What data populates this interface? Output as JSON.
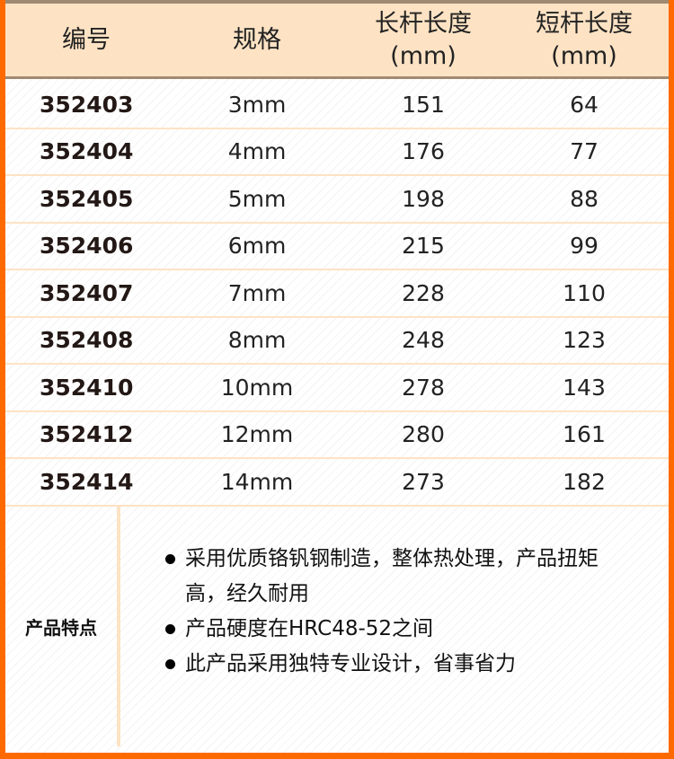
{
  "header": {
    "col1": "编号",
    "col2": "规格",
    "col3": "长杆长度\n(mm)",
    "col4": "短杆长度\n(mm)"
  },
  "rows": [
    [
      "352403",
      "3mm",
      "151",
      "64"
    ],
    [
      "352404",
      "4mm",
      "176",
      "77"
    ],
    [
      "352405",
      "5mm",
      "198",
      "88"
    ],
    [
      "352406",
      "6mm",
      "215",
      "99"
    ],
    [
      "352407",
      "7mm",
      "228",
      "110"
    ],
    [
      "352408",
      "8mm",
      "248",
      "123"
    ],
    [
      "352410",
      "10mm",
      "278",
      "143"
    ],
    [
      "352412",
      "12mm",
      "280",
      "161"
    ],
    [
      "352414",
      "14mm",
      "273",
      "182"
    ]
  ],
  "features": {
    "label": "产品特点",
    "items": [
      "采用优质铬钒钢制造，整体热处理，产品扭矩高，经久耐用",
      "产品硬度在HRC48-52之间",
      "此产品采用独特专业设计，省事省力"
    ]
  },
  "colors": {
    "frame": "#ff6a00",
    "header_bg": "#fde3c4",
    "header_rule": "#a08a72"
  }
}
